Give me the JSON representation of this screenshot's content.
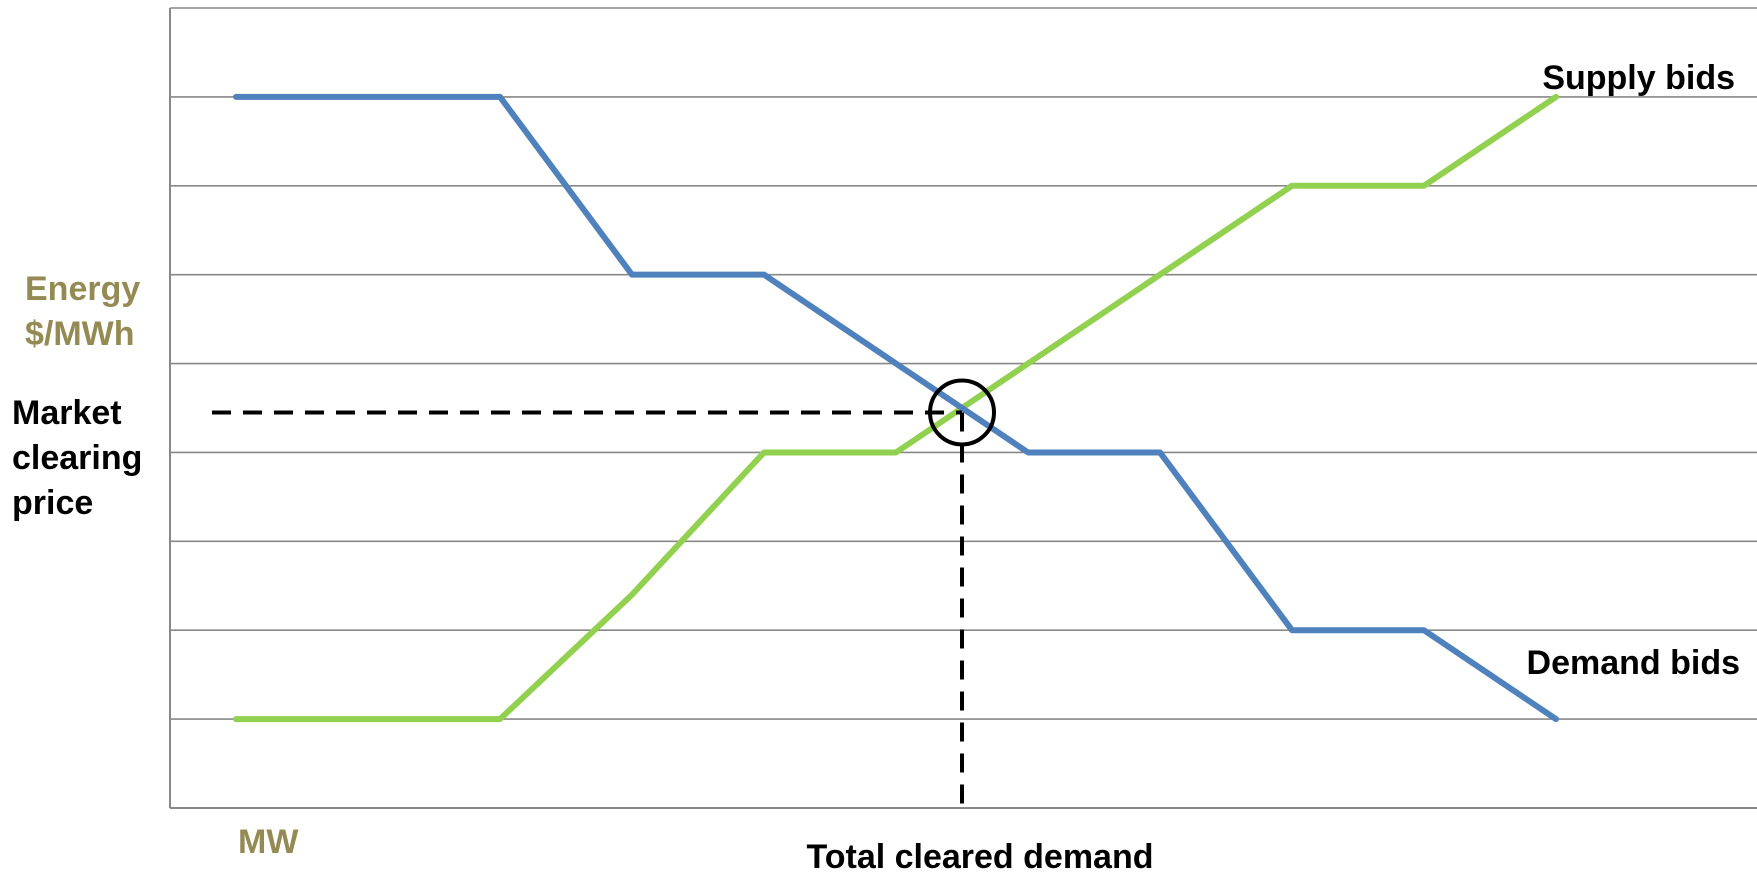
{
  "chart_data": {
    "type": "line",
    "title": "",
    "xlabel": "MW",
    "ylabel": [
      "Energy",
      "$/MWh"
    ],
    "x_range": [
      -0.5,
      11.5
    ],
    "ylim": [
      0,
      9
    ],
    "grid": true,
    "series": [
      {
        "name": "Supply bids",
        "color": "#92d050",
        "x": [
          0,
          2,
          3,
          4,
          5,
          6,
          7,
          8,
          9,
          10
        ],
        "y": [
          1,
          1,
          2.4,
          4,
          4,
          5,
          6,
          7,
          7,
          8
        ]
      },
      {
        "name": "Demand bids",
        "color": "#4f81bd",
        "x": [
          0,
          2,
          3,
          4,
          5,
          6,
          7,
          8,
          9,
          10
        ],
        "y": [
          8,
          8,
          6,
          6,
          5,
          4,
          4,
          2,
          2,
          1
        ]
      }
    ],
    "annotations": {
      "clearing_price_label": [
        "Market",
        "clearing",
        "price"
      ],
      "cleared_demand_label": "Total cleared demand",
      "intersection": {
        "x": 5.5,
        "y": 4.45
      }
    },
    "colors": {
      "axis_label": "#948a54",
      "text": "#000000",
      "grid": "#888888"
    }
  }
}
